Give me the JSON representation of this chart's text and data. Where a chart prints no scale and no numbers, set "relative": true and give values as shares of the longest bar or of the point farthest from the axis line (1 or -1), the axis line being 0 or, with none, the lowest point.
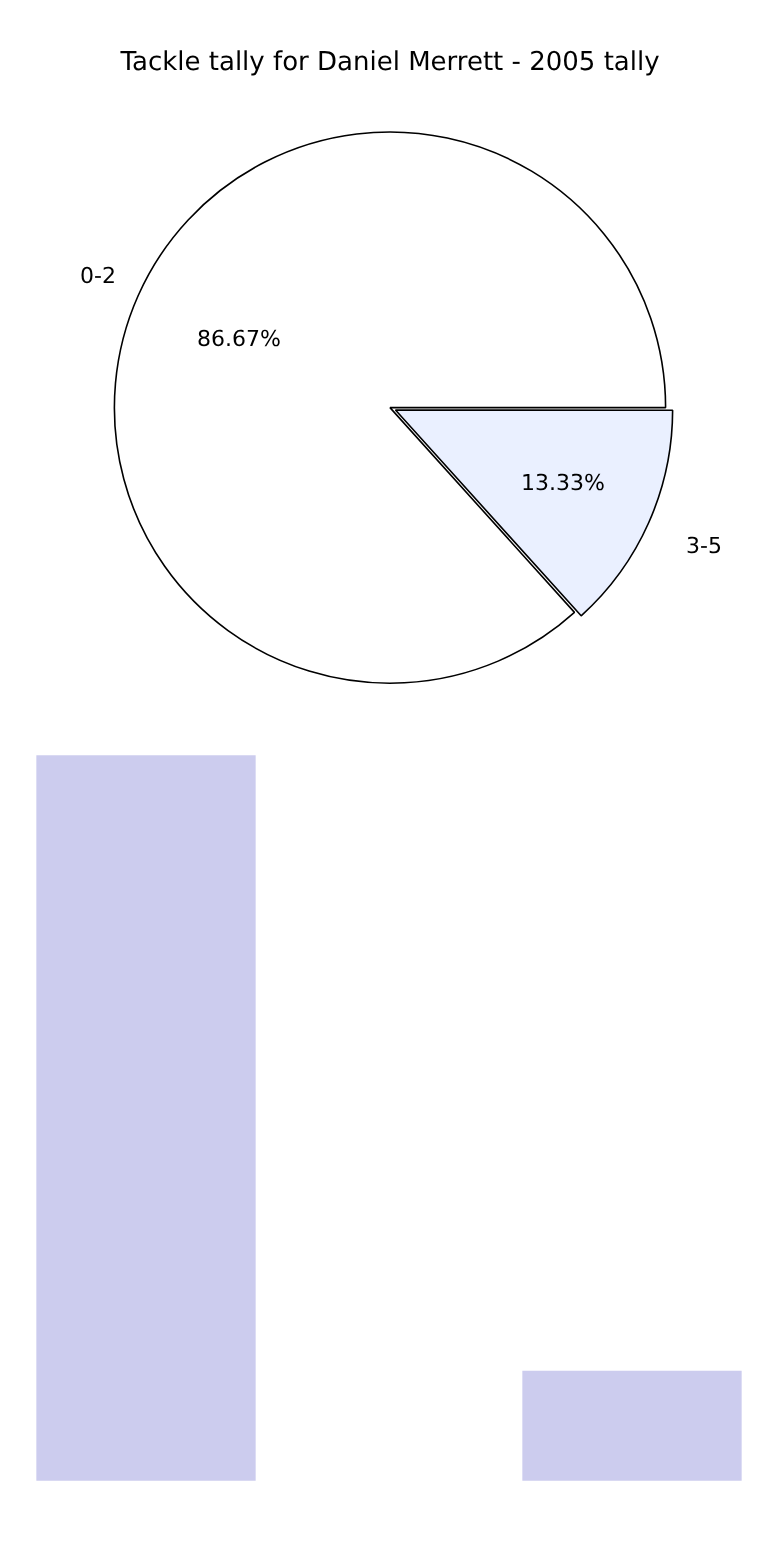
{
  "chart_data": [
    {
      "type": "pie",
      "title": "Tackle tally for Daniel Merrett - 2005 tally",
      "categories": [
        "0-2",
        "3-5"
      ],
      "values": [
        86.67,
        13.33
      ],
      "colors": [
        "#ffffff",
        "#eaf0ff"
      ],
      "value_labels": [
        "86.67%",
        "13.33%"
      ],
      "legend": false
    },
    {
      "type": "bar",
      "relative": true,
      "categories": [
        null,
        null
      ],
      "values": [
        1,
        0.15
      ],
      "color": "#ccccee",
      "legend": false
    }
  ]
}
